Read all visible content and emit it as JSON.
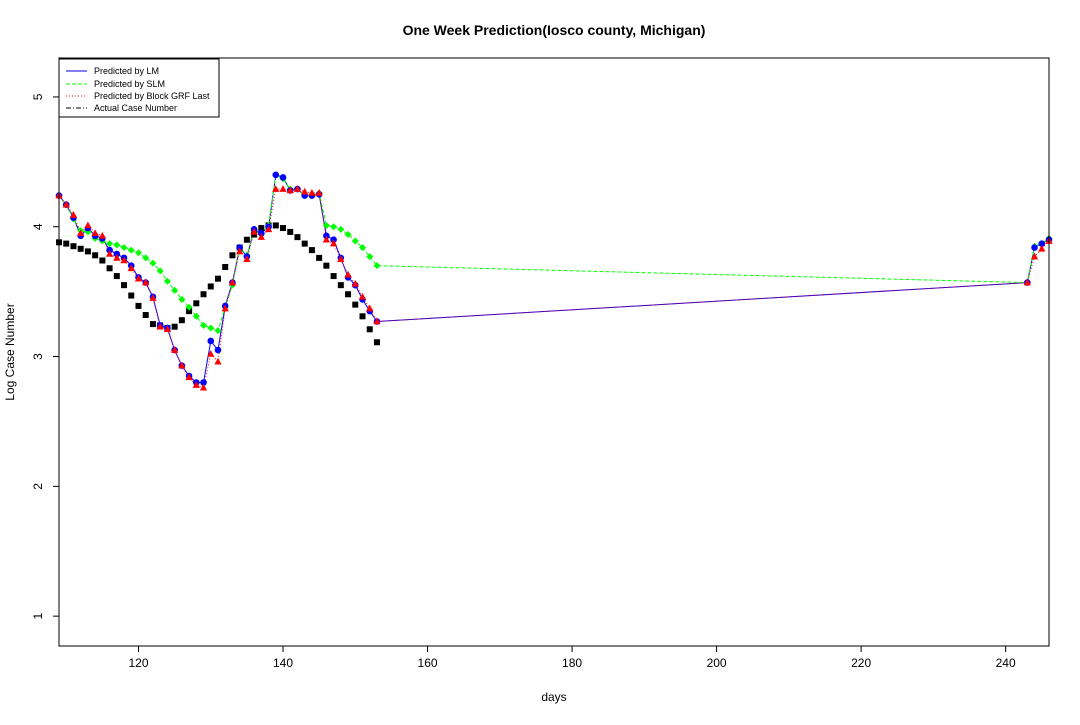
{
  "chart_data": {
    "type": "line",
    "title": "One Week Prediction(Iosco county, Michigan)",
    "xlabel": "days",
    "ylabel": "Log Case Number",
    "xlim": [
      109,
      246
    ],
    "ylim": [
      0.77,
      5.3
    ],
    "xticks": [
      120,
      140,
      160,
      180,
      200,
      220,
      240
    ],
    "yticks": [
      1,
      2,
      3,
      4,
      5
    ],
    "grid": false,
    "legend_position": "top-left",
    "colors": {
      "lm": "#0000ff",
      "slm": "#00ff00",
      "grf": "#ff0000",
      "actual": "#000000"
    },
    "series": [
      {
        "key": "lm",
        "name": "Predicted by LM",
        "marker": "circle-blue",
        "x": [
          109,
          110,
          111,
          112,
          113,
          114,
          115,
          116,
          117,
          118,
          119,
          120,
          121,
          122,
          123,
          124,
          125,
          126,
          127,
          128,
          129,
          130,
          131,
          132,
          133,
          134,
          135,
          136,
          137,
          138,
          139,
          140,
          141,
          142,
          143,
          144,
          145,
          146,
          147,
          148,
          149,
          150,
          151,
          152,
          153,
          243,
          244,
          245,
          246
        ],
        "y": [
          4.24,
          4.17,
          4.07,
          3.93,
          3.99,
          3.93,
          3.91,
          3.82,
          3.79,
          3.76,
          3.7,
          3.61,
          3.57,
          3.46,
          3.24,
          3.22,
          3.05,
          2.93,
          2.85,
          2.8,
          2.8,
          3.12,
          3.05,
          3.39,
          3.57,
          3.84,
          3.77,
          3.98,
          3.95,
          4.0,
          4.4,
          4.38,
          4.28,
          4.29,
          4.24,
          4.24,
          4.25,
          3.93,
          3.9,
          3.76,
          3.61,
          3.55,
          3.44,
          3.35,
          3.27,
          3.57,
          3.84,
          3.87,
          3.9
        ]
      },
      {
        "key": "slm",
        "name": "Predicted by SLM",
        "marker": "diamond-green",
        "x": [
          109,
          110,
          111,
          112,
          113,
          114,
          115,
          116,
          117,
          118,
          119,
          120,
          121,
          122,
          123,
          124,
          125,
          126,
          127,
          128,
          129,
          130,
          131,
          132,
          133,
          134,
          135,
          136,
          137,
          138,
          139,
          140,
          141,
          142,
          143,
          144,
          145,
          146,
          147,
          148,
          149,
          150,
          151,
          152,
          153,
          243,
          244,
          245,
          246
        ],
        "y": [
          4.24,
          4.17,
          4.06,
          3.97,
          3.96,
          3.91,
          3.89,
          3.87,
          3.86,
          3.84,
          3.82,
          3.8,
          3.76,
          3.72,
          3.66,
          3.58,
          3.51,
          3.44,
          3.38,
          3.31,
          3.24,
          3.22,
          3.2,
          3.38,
          3.55,
          3.84,
          3.78,
          3.97,
          3.94,
          4.01,
          4.4,
          4.37,
          4.29,
          4.29,
          4.24,
          4.24,
          4.26,
          4.01,
          4.0,
          3.98,
          3.94,
          3.89,
          3.84,
          3.77,
          3.7,
          3.57,
          3.85,
          3.87,
          3.91
        ]
      },
      {
        "key": "grf",
        "name": "Predicted by Block GRF Last",
        "marker": "triangle-red",
        "x": [
          109,
          110,
          111,
          112,
          113,
          114,
          115,
          116,
          117,
          118,
          119,
          120,
          121,
          122,
          123,
          124,
          125,
          126,
          127,
          128,
          129,
          130,
          131,
          132,
          133,
          134,
          135,
          136,
          137,
          138,
          139,
          140,
          141,
          142,
          143,
          144,
          145,
          146,
          147,
          148,
          149,
          150,
          151,
          152,
          153,
          243,
          244,
          245,
          246
        ],
        "y": [
          4.24,
          4.17,
          4.09,
          3.95,
          4.01,
          3.95,
          3.93,
          3.79,
          3.76,
          3.74,
          3.68,
          3.6,
          3.57,
          3.45,
          3.23,
          3.21,
          3.05,
          2.93,
          2.84,
          2.78,
          2.76,
          3.02,
          2.96,
          3.37,
          3.57,
          3.81,
          3.75,
          3.96,
          3.92,
          3.98,
          4.29,
          4.29,
          4.28,
          4.29,
          4.27,
          4.26,
          4.26,
          3.9,
          3.87,
          3.75,
          3.63,
          3.56,
          3.46,
          3.37,
          3.27,
          3.57,
          3.77,
          3.83,
          3.89
        ]
      },
      {
        "key": "actual",
        "name": "Actual Case Number",
        "marker": "square-black",
        "x": [
          109,
          110,
          111,
          112,
          113,
          114,
          115,
          116,
          117,
          118,
          119,
          120,
          121,
          122,
          123,
          124,
          125,
          126,
          127,
          128,
          129,
          130,
          131,
          132,
          133,
          134,
          135,
          136,
          137,
          138,
          139,
          140,
          141,
          142,
          143,
          144,
          145,
          146,
          147,
          148,
          149,
          150,
          151,
          152,
          153
        ],
        "y": [
          3.88,
          3.87,
          3.85,
          3.83,
          3.81,
          3.78,
          3.74,
          3.68,
          3.62,
          3.55,
          3.47,
          3.39,
          3.32,
          3.25,
          3.24,
          3.22,
          3.23,
          3.28,
          3.35,
          3.41,
          3.48,
          3.54,
          3.6,
          3.69,
          3.78,
          3.84,
          3.9,
          3.94,
          3.99,
          4.01,
          4.01,
          3.99,
          3.96,
          3.92,
          3.87,
          3.82,
          3.76,
          3.7,
          3.62,
          3.55,
          3.48,
          3.4,
          3.31,
          3.21,
          3.11
        ]
      }
    ]
  }
}
